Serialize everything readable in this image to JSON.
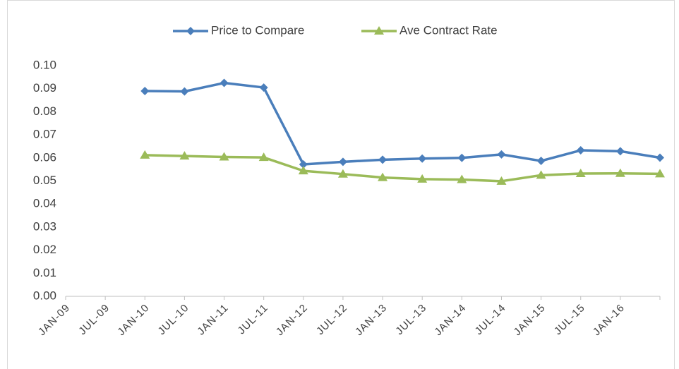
{
  "chart_data": {
    "type": "line",
    "categories": [
      "JAN-09",
      "JUL-09",
      "JAN-10",
      "JUL-10",
      "JAN-11",
      "JUL-11",
      "JAN-12",
      "JUL-12",
      "JAN-13",
      "JUL-13",
      "JAN-14",
      "JUL-14",
      "JAN-15",
      "JUL-15",
      "JAN-16",
      null
    ],
    "series": [
      {
        "name": "Price to Compare",
        "color": "#4a7ebb",
        "marker": "diamond",
        "values": [
          null,
          null,
          0.089,
          0.0888,
          0.0925,
          0.0905,
          0.0572,
          0.0583,
          0.0592,
          0.0597,
          0.06,
          0.0615,
          0.0587,
          0.0633,
          0.0629,
          0.0601
        ]
      },
      {
        "name": "Ave Contract Rate",
        "color": "#9bbb59",
        "marker": "triangle",
        "values": [
          null,
          null,
          0.0612,
          0.0608,
          0.0604,
          0.0602,
          0.0544,
          0.053,
          0.0515,
          0.0508,
          0.0506,
          0.0499,
          0.0525,
          0.0532,
          0.0533,
          0.0531
        ]
      }
    ],
    "ylim": [
      0,
      0.1
    ],
    "yticks": [
      {
        "value": 0,
        "label": "0.00"
      },
      {
        "value": 0.01,
        "label": "0.01"
      },
      {
        "value": 0.02,
        "label": "0.02"
      },
      {
        "value": 0.03,
        "label": "0.03"
      },
      {
        "value": 0.04,
        "label": "0.04"
      },
      {
        "value": 0.05,
        "label": "0.05"
      },
      {
        "value": 0.06,
        "label": "0.06"
      },
      {
        "value": 0.07,
        "label": "0.07"
      },
      {
        "value": 0.08,
        "label": "0.08"
      },
      {
        "value": 0.09,
        "label": "0.09"
      },
      {
        "value": 0.1,
        "label": "0.10"
      }
    ],
    "legend": "top",
    "grid": false
  }
}
